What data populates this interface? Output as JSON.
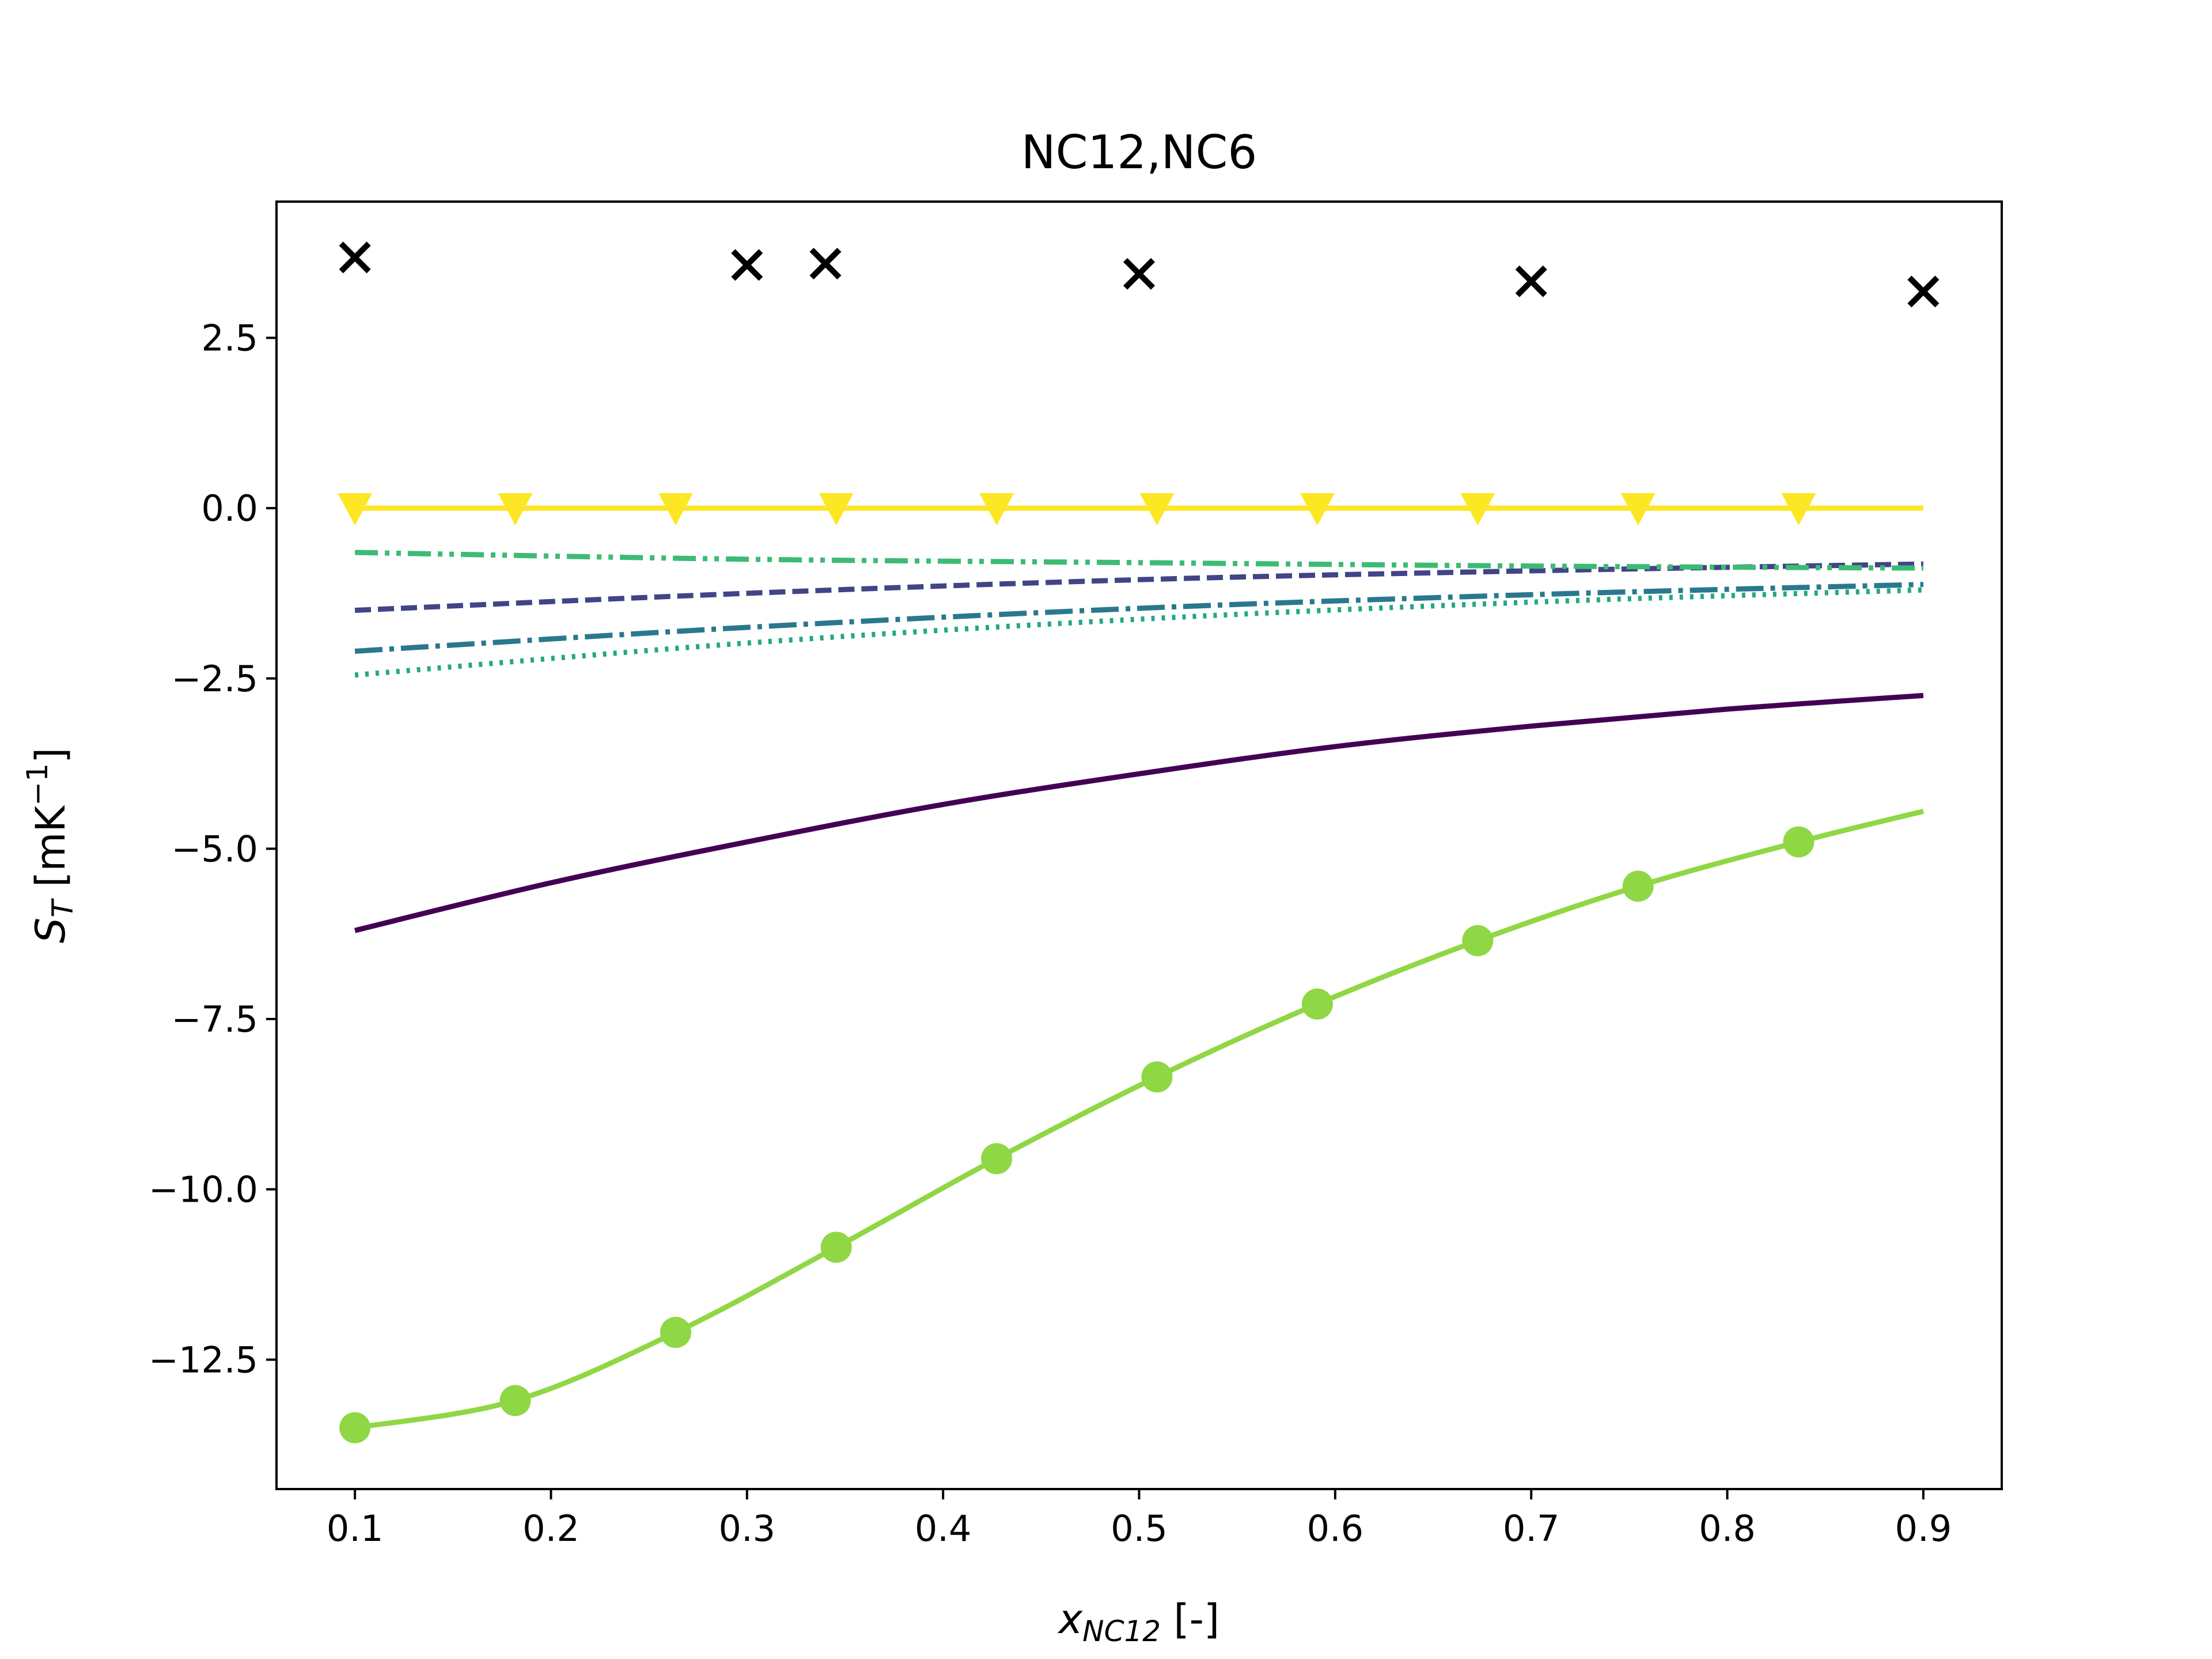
{
  "chart_data": {
    "type": "line",
    "title": "NC12,NC6",
    "xlabel": {
      "base": "x",
      "sub": "NC12",
      "suffix": " [-]"
    },
    "ylabel": {
      "base": "S",
      "sub": "T",
      "suffix": " [mK",
      "sup": "−1",
      "end": "]"
    },
    "xlim": [
      0.06,
      0.94
    ],
    "ylim": [
      -14.4,
      4.5
    ],
    "xticks": [
      0.1,
      0.2,
      0.3,
      0.4,
      0.5,
      0.6,
      0.7,
      0.8,
      0.9
    ],
    "xtick_labels": [
      "0.1",
      "0.2",
      "0.3",
      "0.4",
      "0.5",
      "0.6",
      "0.7",
      "0.8",
      "0.9"
    ],
    "yticks": [
      2.5,
      0.0,
      -2.5,
      -5.0,
      -7.5,
      -10.0,
      -12.5
    ],
    "ytick_labels": [
      "2.5",
      "0.0",
      "−2.5",
      "−5.0",
      "−7.5",
      "−10.0",
      "−12.5"
    ],
    "grid": false,
    "series": [
      {
        "color": "#440154",
        "dash": "none",
        "marker": "none",
        "x": [
          0.1,
          0.2,
          0.3,
          0.4,
          0.5,
          0.6,
          0.7,
          0.8,
          0.9
        ],
        "y": [
          -6.2,
          -5.5,
          -4.9,
          -4.35,
          -3.9,
          -3.5,
          -3.2,
          -2.95,
          -2.75
        ]
      },
      {
        "color": "#414487",
        "dash": "dashed",
        "marker": "none",
        "x": [
          0.1,
          0.3,
          0.5,
          0.7,
          0.9
        ],
        "y": [
          -1.5,
          -1.25,
          -1.05,
          -0.92,
          -0.82
        ]
      },
      {
        "color": "#2a788e",
        "dash": "dashdot",
        "marker": "none",
        "x": [
          0.1,
          0.3,
          0.5,
          0.7,
          0.9
        ],
        "y": [
          -2.1,
          -1.75,
          -1.47,
          -1.27,
          -1.12
        ]
      },
      {
        "color": "#22a884",
        "dash": "dotted",
        "marker": "none",
        "x": [
          0.1,
          0.3,
          0.5,
          0.7,
          0.9
        ],
        "y": [
          -2.45,
          -1.98,
          -1.63,
          -1.38,
          -1.2
        ]
      },
      {
        "color": "#3cbb75",
        "dash": "dashdotdot",
        "marker": "none",
        "x": [
          0.1,
          0.3,
          0.5,
          0.7,
          0.9
        ],
        "y": [
          -0.65,
          -0.75,
          -0.8,
          -0.85,
          -0.88
        ]
      },
      {
        "color": "#8fd744",
        "dash": "none",
        "marker": "circle",
        "x": [
          0.1,
          0.1818,
          0.2636,
          0.3455,
          0.4273,
          0.5091,
          0.5909,
          0.6727,
          0.7545,
          0.8364,
          0.9
        ],
        "y": [
          -13.5,
          -13.1,
          -12.1,
          -10.85,
          -9.55,
          -8.35,
          -7.28,
          -6.35,
          -5.55,
          -4.9,
          -4.45
        ],
        "markers_x": [
          0.1,
          0.1818,
          0.2636,
          0.3455,
          0.4273,
          0.5091,
          0.5909,
          0.6727,
          0.7545,
          0.8364
        ],
        "markers_y": [
          -13.5,
          -13.1,
          -12.1,
          -10.85,
          -9.55,
          -8.35,
          -7.28,
          -6.35,
          -5.55,
          -4.9
        ]
      },
      {
        "color": "#fde725",
        "dash": "none",
        "marker": "triangle-down",
        "x": [
          0.1,
          0.9
        ],
        "y": [
          0.0,
          0.0
        ],
        "markers_x": [
          0.1,
          0.1818,
          0.2636,
          0.3455,
          0.4273,
          0.5091,
          0.5909,
          0.6727,
          0.7545,
          0.8364
        ],
        "markers_y": [
          0,
          0,
          0,
          0,
          0,
          0,
          0,
          0,
          0,
          0
        ]
      },
      {
        "color": "#000000",
        "dash": "none",
        "marker": "x",
        "scatter": true,
        "x": [
          0.1,
          0.3,
          0.34,
          0.5,
          0.7,
          0.9
        ],
        "y": [
          3.68,
          3.57,
          3.59,
          3.44,
          3.33,
          3.18
        ]
      }
    ]
  }
}
